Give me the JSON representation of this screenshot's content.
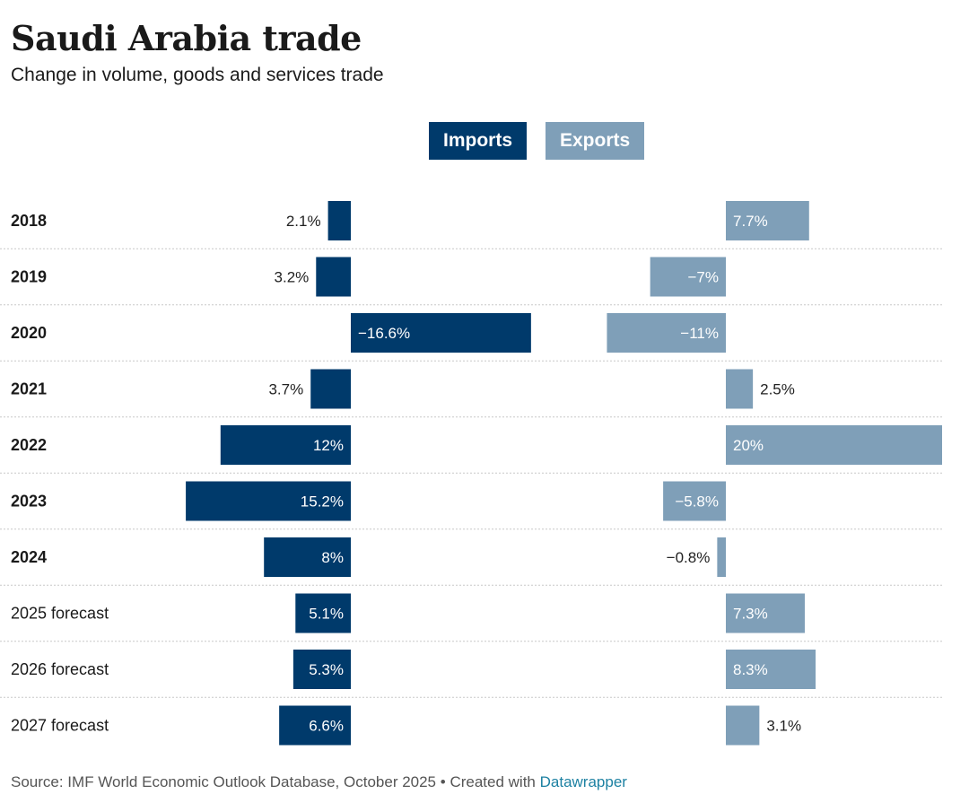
{
  "title": "Saudi Arabia trade",
  "subtitle": "Change in volume, goods and services trade",
  "legend": {
    "imports": "Imports",
    "exports": "Exports"
  },
  "colors": {
    "imports": "#003a6b",
    "exports": "#7f9fb8"
  },
  "footer": {
    "source": "Source: IMF World Economic Outlook Database, October 2025",
    "created_with": "Created with",
    "tool": "Datawrapper"
  },
  "chart_data": {
    "type": "bar",
    "orientation": "horizontal",
    "categories": [
      "2018",
      "2019",
      "2020",
      "2021",
      "2022",
      "2023",
      "2024",
      "2025 forecast",
      "2026 forecast",
      "2027 forecast"
    ],
    "bold_categories": [
      "2018",
      "2019",
      "2020",
      "2021",
      "2022",
      "2023",
      "2024"
    ],
    "series": [
      {
        "name": "Imports",
        "values": [
          2.1,
          3.2,
          -16.6,
          3.7,
          12,
          15.2,
          8,
          5.1,
          5.3,
          6.6
        ],
        "labels": [
          "2.1%",
          "3.2%",
          "−16.6%",
          "3.7%",
          "12%",
          "15.2%",
          "8%",
          "5.1%",
          "5.3%",
          "6.6%"
        ]
      },
      {
        "name": "Exports",
        "values": [
          7.7,
          -7,
          -11,
          2.5,
          20,
          -5.8,
          -0.8,
          7.3,
          8.3,
          3.1
        ],
        "labels": [
          "7.7%",
          "−7%",
          "−11%",
          "2.5%",
          "20%",
          "−5.8%",
          "−0.8%",
          "7.3%",
          "8.3%",
          "3.1%"
        ]
      }
    ],
    "imports_axis_direction": "positive values extend left",
    "exports_axis_direction": "positive values extend right"
  }
}
